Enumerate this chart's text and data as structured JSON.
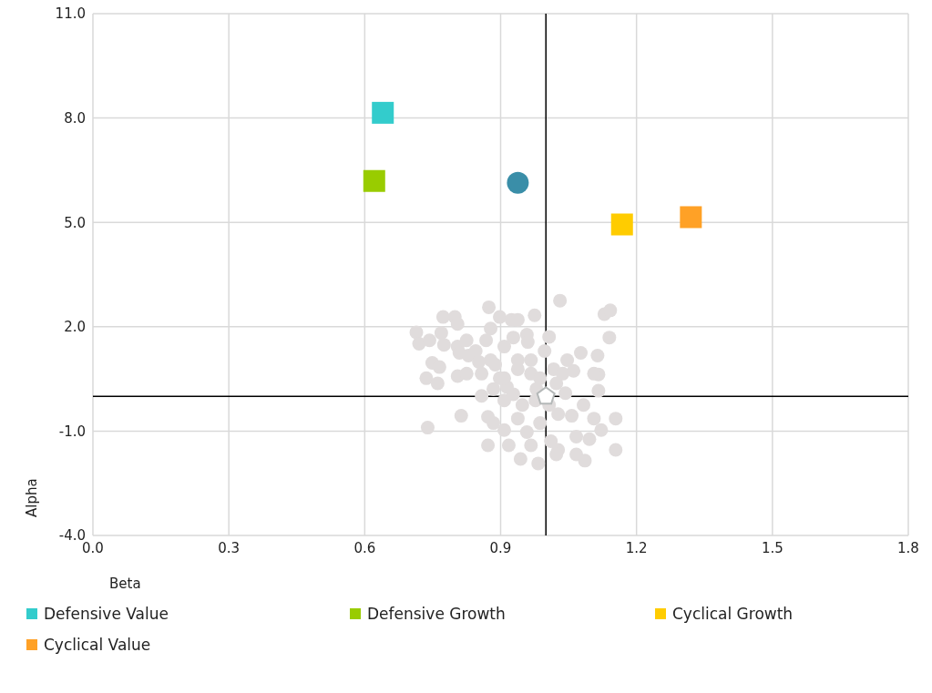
{
  "chart_data": {
    "type": "scatter",
    "xlabel": "Beta",
    "ylabel": "Alpha",
    "xlim": [
      0,
      1.8
    ],
    "xticks": [
      {
        "value": 0,
        "label": "0.0"
      },
      {
        "value": 0.3,
        "label": "0.3"
      },
      {
        "value": 0.6,
        "label": "0.6"
      },
      {
        "value": 0.9,
        "label": "0.9"
      },
      {
        "value": 1.2,
        "label": "1.2"
      },
      {
        "value": 1.5,
        "label": "1.5"
      },
      {
        "value": 1.8,
        "label": "1.8"
      }
    ],
    "ylim": [
      -4,
      11
    ],
    "yticks": [
      {
        "value": -4,
        "label": "-4.0"
      },
      {
        "value": -1,
        "label": "-1.0"
      },
      {
        "value": 2,
        "label": "2.0"
      },
      {
        "value": 5,
        "label": "5.0"
      },
      {
        "value": 8,
        "label": "8.0"
      },
      {
        "value": 11,
        "label": "11.0"
      }
    ],
    "grid": true,
    "legend": "bottom",
    "ref_lines": [
      {
        "axis": "x",
        "value": 1,
        "color": "#000000"
      },
      {
        "axis": "y",
        "value": 0,
        "color": "#000000"
      }
    ],
    "series": [
      {
        "color": "#e0dcdc",
        "marker": "circle",
        "x": [
          0.714,
          0.72,
          0.743,
          0.773,
          0.799,
          0.805,
          0.769,
          0.775,
          0.805,
          0.825,
          0.809,
          0.829,
          0.874,
          0.898,
          0.924,
          0.938,
          0.975,
          1.031,
          1.129,
          1.142,
          1.14,
          1.114,
          1.116,
          0.878,
          0.868,
          0.845,
          0.852,
          0.878,
          0.908,
          0.928,
          0.958,
          0.96,
          1.007,
          0.997,
          1.017,
          1.047,
          1.061,
          1.037,
          1.077,
          1.106,
          1.116,
          0.749,
          0.765,
          0.736,
          0.761,
          0.805,
          0.825,
          0.858,
          0.888,
          0.898,
          0.938,
          0.967,
          0.987,
          1.023,
          0.858,
          0.884,
          0.908,
          0.928,
          0.948,
          0.977,
          1.007,
          1.027,
          1.057,
          1.083,
          1.106,
          1.154,
          0.739,
          0.813,
          0.884,
          0.908,
          0.938,
          0.958,
          0.987,
          1.011,
          1.027,
          1.067,
          1.096,
          1.122,
          1.154,
          0.872,
          0.918,
          0.944,
          0.983,
          1.023,
          1.067,
          1.086,
          0.872,
          0.967,
          0.914,
          0.979,
          1.043,
          0.938,
          0.908,
          0.967
        ],
        "values": [
          1.84,
          1.51,
          1.61,
          2.28,
          2.28,
          2.08,
          1.82,
          1.48,
          1.43,
          1.61,
          1.25,
          1.17,
          2.56,
          2.28,
          2.2,
          2.2,
          2.33,
          2.75,
          2.36,
          2.47,
          1.69,
          1.17,
          0.63,
          1.95,
          1.61,
          1.3,
          0.99,
          1.04,
          1.43,
          1.69,
          1.77,
          1.56,
          1.71,
          1.3,
          0.78,
          1.04,
          0.73,
          0.65,
          1.25,
          0.65,
          0.16,
          0.96,
          0.84,
          0.52,
          0.37,
          0.58,
          0.65,
          0.65,
          0.91,
          0.52,
          0.78,
          0.65,
          0.52,
          0.37,
          0.01,
          0.21,
          -0.12,
          0.06,
          -0.25,
          -0.12,
          -0.25,
          -0.51,
          -0.56,
          -0.25,
          -0.64,
          -0.64,
          -0.9,
          -0.56,
          -0.77,
          -0.97,
          -0.64,
          -1.03,
          -0.77,
          -1.29,
          -1.54,
          -1.16,
          -1.23,
          -0.97,
          -1.54,
          -1.41,
          -1.41,
          -1.8,
          -1.93,
          -1.67,
          -1.67,
          -1.85,
          -0.59,
          -1.41,
          0.27,
          0.21,
          0.09,
          1.04,
          0.52,
          1.04
        ]
      },
      {
        "name": "Defensive Value",
        "color": "#33cccc",
        "marker": "square",
        "x": [
          0.64
        ],
        "values": [
          8.15
        ]
      },
      {
        "name": "Defensive Growth",
        "color": "#99cc00",
        "marker": "square",
        "x": [
          0.621
        ],
        "values": [
          6.19
        ]
      },
      {
        "name": "Cyclical Growth",
        "color": "#ffcc00",
        "marker": "square",
        "x": [
          1.168
        ],
        "values": [
          4.94
        ]
      },
      {
        "name": "Cyclical Value",
        "color": "#ffa126",
        "marker": "square",
        "x": [
          1.32
        ],
        "values": [
          5.15
        ]
      },
      {
        "color": "#3a8ea8",
        "marker": "circle",
        "x": [
          0.938
        ],
        "values": [
          6.14
        ]
      },
      {
        "color": "#b4b8b8",
        "x": [
          1.0
        ],
        "values": [
          0
        ]
      }
    ]
  }
}
